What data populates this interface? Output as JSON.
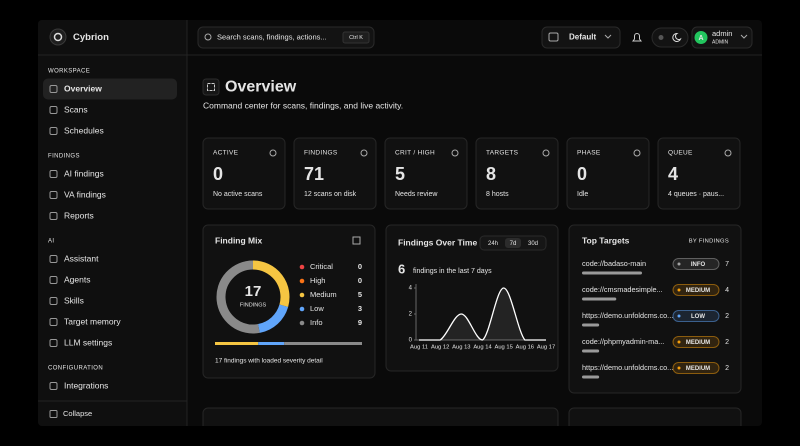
{
  "brand": "Cybrion",
  "search": {
    "placeholder": "Search scans, findings, actions...",
    "shortcut": "Ctrl K"
  },
  "workspace": "Default",
  "user": {
    "initial": "A",
    "name": "admin",
    "role": "ADMIN"
  },
  "sidebar": {
    "sections": [
      {
        "title": "WORKSPACE",
        "items": [
          "Overview",
          "Scans",
          "Schedules"
        ]
      },
      {
        "title": "FINDINGS",
        "items": [
          "AI findings",
          "VA findings",
          "Reports"
        ]
      },
      {
        "title": "AI",
        "items": [
          "Assistant",
          "Agents",
          "Skills",
          "Target memory",
          "LLM settings"
        ]
      },
      {
        "title": "CONFIGURATION",
        "items": [
          "Integrations"
        ]
      }
    ],
    "collapse": "Collapse"
  },
  "header": {
    "title": "Overview",
    "subtitle": "Command center for scans, findings, and live activity."
  },
  "stats": [
    {
      "label": "ACTIVE",
      "value": 0,
      "note": "No active scans",
      "color": "#ffffff"
    },
    {
      "label": "FINDINGS",
      "value": 71,
      "note": "12 scans on disk",
      "color": "#ffffff"
    },
    {
      "label": "CRIT / HIGH",
      "value": 5,
      "note": "Needs review",
      "color": "#f87171"
    },
    {
      "label": "TARGETS",
      "value": 8,
      "note": "8 hosts",
      "color": "#ffffff"
    },
    {
      "label": "PHASE",
      "value": 0,
      "note": "Idle",
      "color": "#ffffff"
    },
    {
      "label": "QUEUE",
      "value": 4,
      "note": "4 queues · paus...",
      "color": "#fbbf24"
    }
  ],
  "finding_mix": {
    "title": "Finding Mix",
    "total": 17,
    "total_label": "FINDINGS",
    "items": [
      {
        "name": "Critical",
        "value": 0,
        "color": "#ef4444"
      },
      {
        "name": "High",
        "value": 0,
        "color": "#f97316"
      },
      {
        "name": "Medium",
        "value": 5,
        "color": "#f5c542"
      },
      {
        "name": "Low",
        "value": 3,
        "color": "#60a5fa"
      },
      {
        "name": "Info",
        "value": 9,
        "color": "#8a8a8a"
      }
    ],
    "footer": "17 findings with loaded severity detail"
  },
  "findings_over_time": {
    "type": "line",
    "title": "Findings Over Time",
    "ranges": [
      "24h",
      "7d",
      "30d"
    ],
    "selected_range": 1,
    "total": 6,
    "total_caption": "findings in the last 7 days",
    "categories": [
      "Aug 11",
      "Aug 12",
      "Aug 13",
      "Aug 14",
      "Aug 15",
      "Aug 16",
      "Aug 17"
    ],
    "values": [
      0,
      0,
      2,
      0,
      4,
      0,
      0
    ],
    "ylim": [
      0,
      4
    ],
    "yticks": [
      0,
      2,
      4
    ],
    "color": "#ffffff"
  },
  "top_targets": {
    "title": "Top Targets",
    "subtitle": "BY FINDINGS",
    "rows": [
      {
        "target": "code://badaso-main",
        "severity": "INFO",
        "count": 7,
        "color": "#a3a3a3"
      },
      {
        "target": "code://cmsmadesimple...",
        "severity": "MEDIUM",
        "count": 4,
        "color": "#f59e0b"
      },
      {
        "target": "https://demo.unfoldcms.co...",
        "severity": "LOW",
        "count": 2,
        "color": "#60a5fa"
      },
      {
        "target": "code://phpmyadmin-ma...",
        "severity": "MEDIUM",
        "count": 2,
        "color": "#f59e0b"
      },
      {
        "target": "https://demo.unfoldcms.co...",
        "severity": "MEDIUM",
        "count": 2,
        "color": "#f59e0b"
      }
    ]
  }
}
